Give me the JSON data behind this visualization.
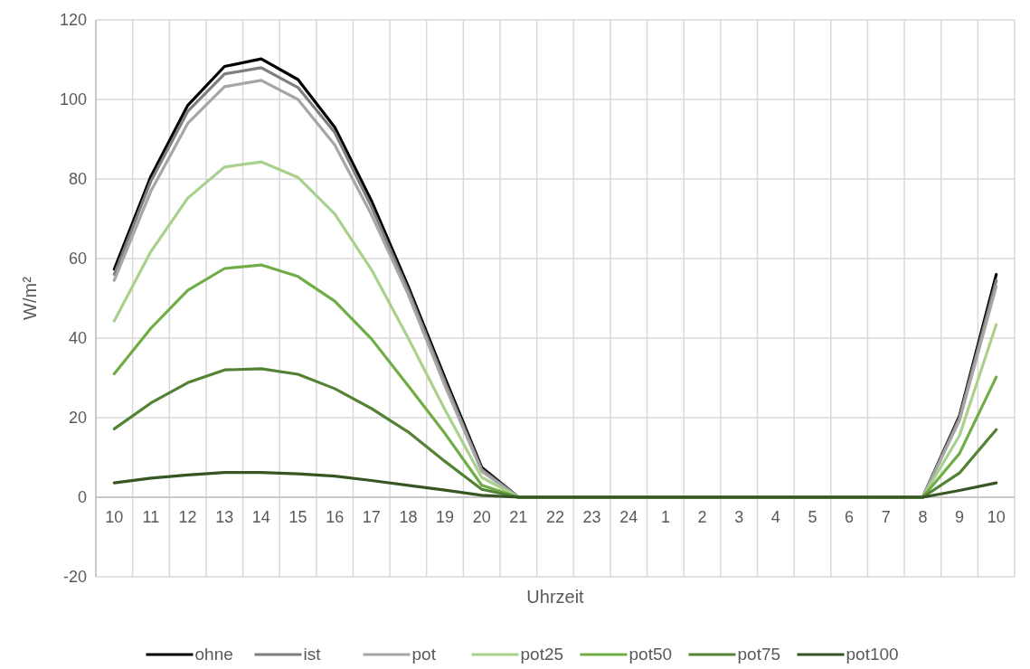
{
  "chart_data": {
    "type": "line",
    "xlabel": "Uhrzeit",
    "ylabel": "W/m²",
    "categories": [
      "10",
      "11",
      "12",
      "13",
      "14",
      "15",
      "16",
      "17",
      "18",
      "19",
      "20",
      "21",
      "22",
      "23",
      "24",
      "1",
      "2",
      "3",
      "4",
      "5",
      "6",
      "7",
      "8",
      "9",
      "10"
    ],
    "series": [
      {
        "name": "ohne",
        "color": "#000000",
        "values": [
          57.3,
          80.7,
          98.5,
          108.3,
          110.2,
          105,
          93,
          74.5,
          53,
          30,
          7.5,
          0,
          0,
          0,
          0,
          0,
          0,
          0,
          0,
          0,
          0,
          0,
          0,
          20.5,
          56
        ]
      },
      {
        "name": "ist",
        "color": "#7f7f7f",
        "values": [
          56,
          79.5,
          97,
          106.4,
          108,
          103,
          91.7,
          73,
          52,
          29,
          7,
          0,
          0,
          0,
          0,
          0,
          0,
          0,
          0,
          0,
          0,
          0,
          0,
          20,
          54.5
        ]
      },
      {
        "name": "pot",
        "color": "#a6a6a6",
        "values": [
          54.5,
          77,
          94,
          103.2,
          104.8,
          100,
          88.6,
          71,
          51,
          28,
          6.5,
          0,
          0,
          0,
          0,
          0,
          0,
          0,
          0,
          0,
          0,
          0,
          0,
          19.3,
          53
        ]
      },
      {
        "name": "pot25",
        "color": "#a9d18e",
        "values": [
          44.3,
          61.8,
          75.2,
          83,
          84.3,
          80.4,
          71.2,
          57.2,
          40,
          22,
          5,
          0,
          0,
          0,
          0,
          0,
          0,
          0,
          0,
          0,
          0,
          0,
          0,
          15.5,
          43.4
        ]
      },
      {
        "name": "pot50",
        "color": "#70ad47",
        "values": [
          31,
          42.5,
          52,
          57.5,
          58.4,
          55.5,
          49.3,
          39.8,
          28,
          16,
          3,
          0,
          0,
          0,
          0,
          0,
          0,
          0,
          0,
          0,
          0,
          0,
          0,
          11,
          30.2
        ]
      },
      {
        "name": "pot75",
        "color": "#548235",
        "values": [
          17.2,
          23.7,
          28.8,
          32,
          32.3,
          30.9,
          27.3,
          22.3,
          16.4,
          9,
          2,
          0,
          0,
          0,
          0,
          0,
          0,
          0,
          0,
          0,
          0,
          0,
          0,
          6.1,
          17
        ]
      },
      {
        "name": "pot100",
        "color": "#375623",
        "values": [
          3.6,
          4.8,
          5.6,
          6.2,
          6.2,
          5.9,
          5.3,
          4.2,
          3,
          1.8,
          0.5,
          0,
          0,
          0,
          0,
          0,
          0,
          0,
          0,
          0,
          0,
          0,
          0,
          1.7,
          3.6
        ]
      }
    ],
    "ylim": [
      -20,
      120
    ],
    "yticks": [
      -20,
      0,
      20,
      40,
      60,
      80,
      100,
      120
    ],
    "grid": true,
    "legend": "bottom",
    "marker": "none",
    "line_style": "solid"
  }
}
